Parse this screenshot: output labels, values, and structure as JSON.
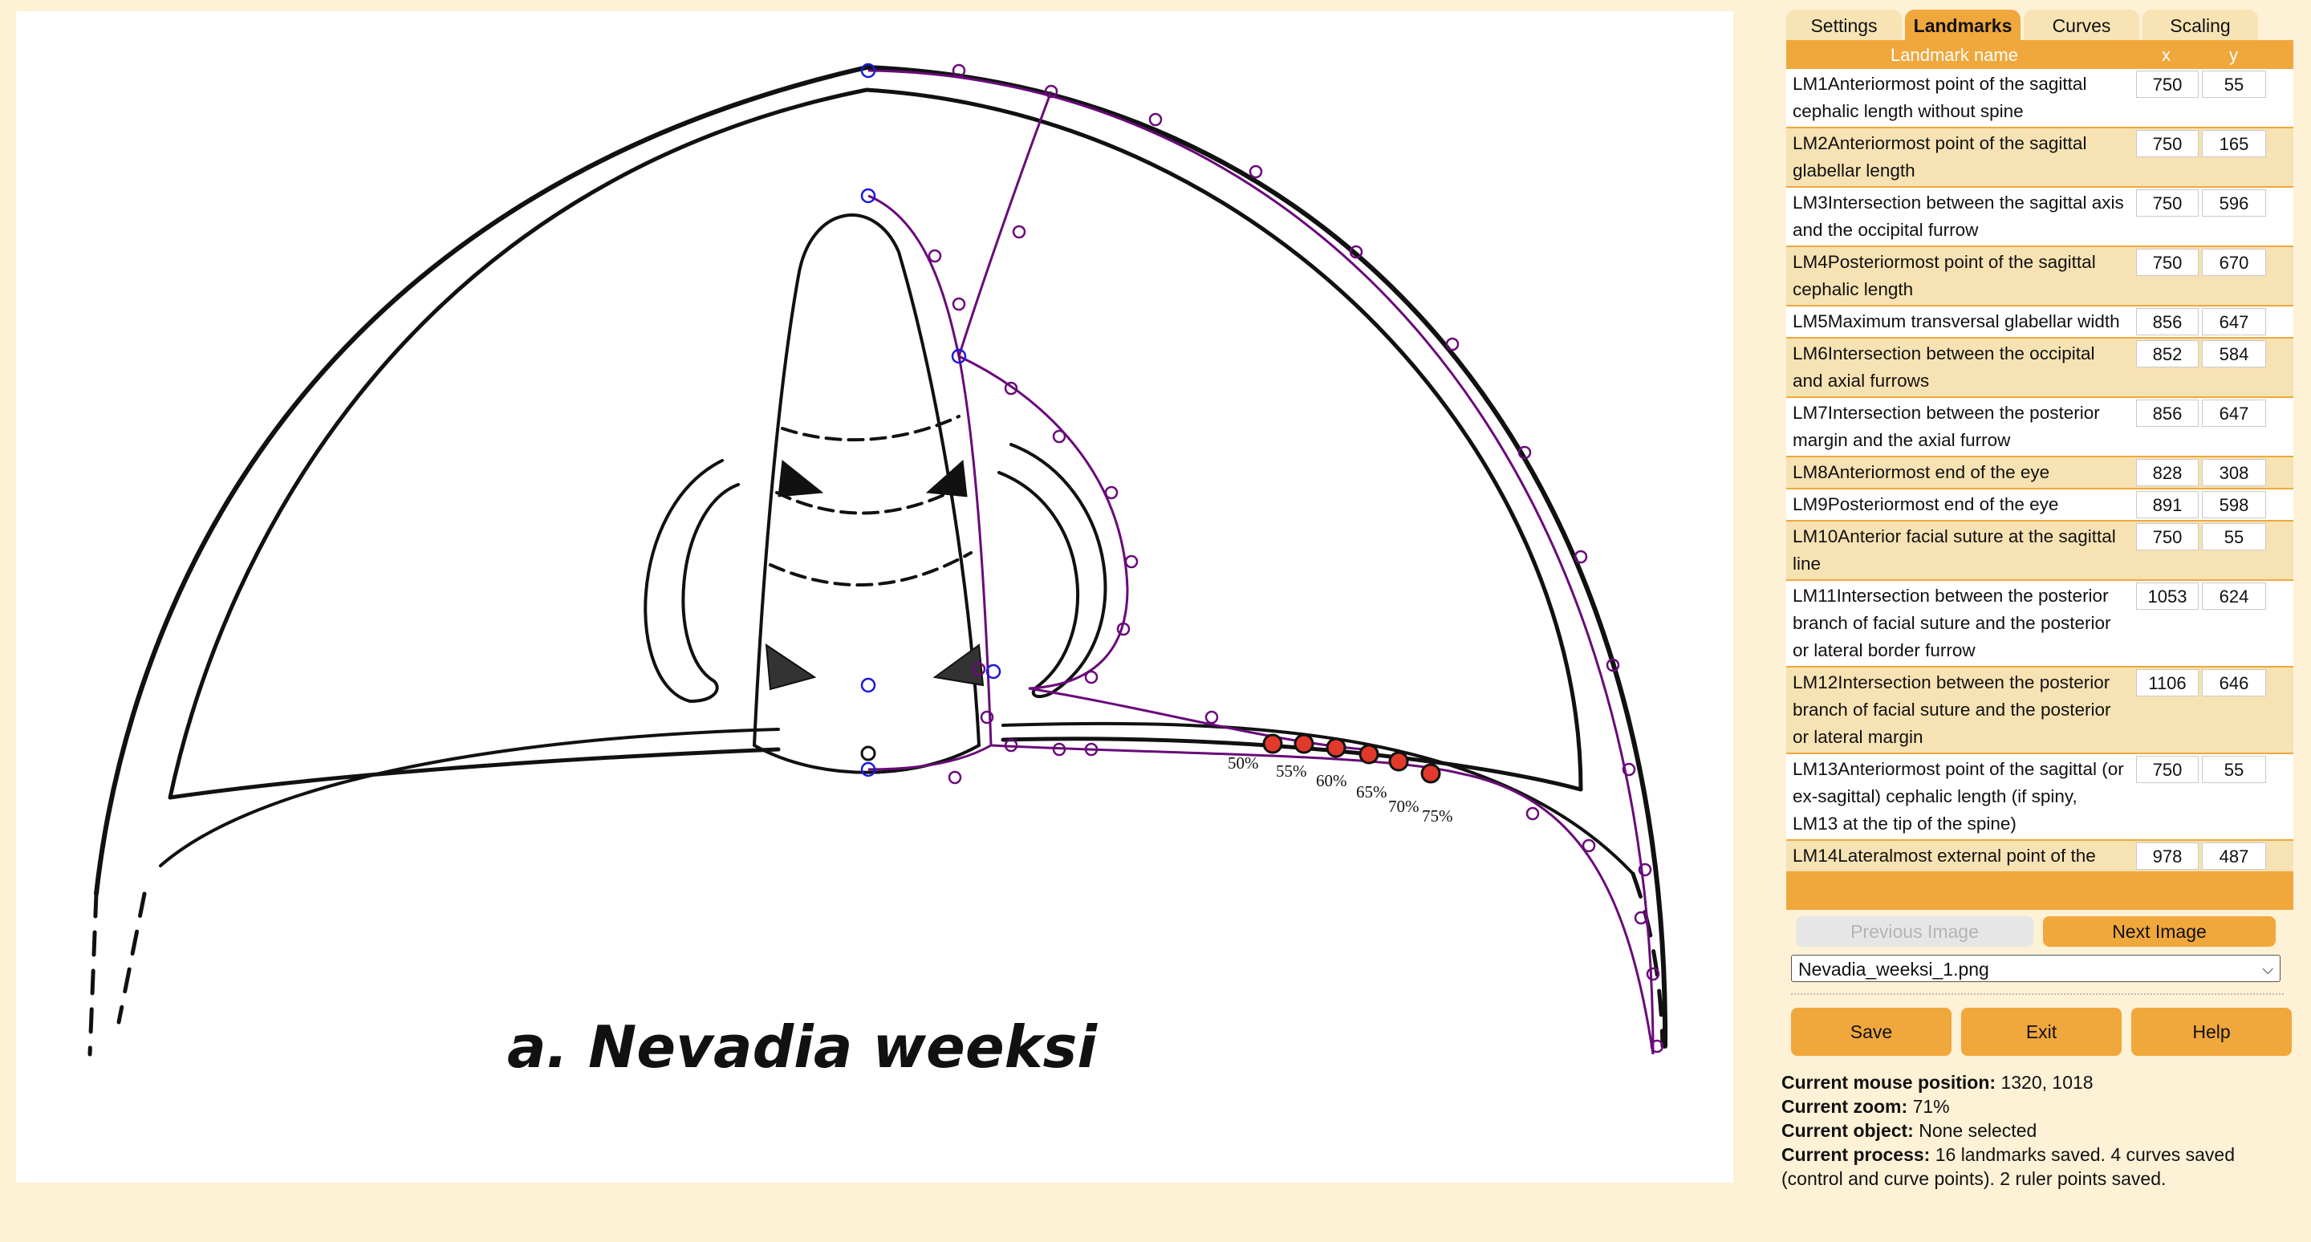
{
  "tabs": [
    {
      "label": "Settings",
      "active": false
    },
    {
      "label": "Landmarks",
      "active": true
    },
    {
      "label": "Curves",
      "active": false
    },
    {
      "label": "Scaling",
      "active": false
    }
  ],
  "table": {
    "headers": {
      "name": "Landmark name",
      "x": "x",
      "y": "y"
    },
    "rows": [
      {
        "name": "LM1Anteriormost point of the sagittal cephalic length without spine",
        "x": "750",
        "y": "55"
      },
      {
        "name": "LM2Anteriormost point of the sagittal glabellar length",
        "x": "750",
        "y": "165"
      },
      {
        "name": "LM3Intersection between the sagittal axis and the occipital furrow",
        "x": "750",
        "y": "596"
      },
      {
        "name": "LM4Posteriormost point of the sagittal cephalic length",
        "x": "750",
        "y": "670"
      },
      {
        "name": "LM5Maximum transversal glabellar width",
        "x": "856",
        "y": "647"
      },
      {
        "name": "LM6Intersection between the occipital and axial furrows",
        "x": "852",
        "y": "584"
      },
      {
        "name": "LM7Intersection between the posterior margin and the axial furrow",
        "x": "856",
        "y": "647"
      },
      {
        "name": "LM8Anteriormost end of the eye",
        "x": "828",
        "y": "308"
      },
      {
        "name": "LM9Posteriormost end of the eye",
        "x": "891",
        "y": "598"
      },
      {
        "name": "LM10Anterior facial suture at the sagittal line",
        "x": "750",
        "y": "55"
      },
      {
        "name": "LM11Intersection between the posterior branch of facial suture and the posterior or lateral border furrow",
        "x": "1053",
        "y": "624"
      },
      {
        "name": "LM12Intersection between the posterior branch of facial suture and the posterior or lateral margin",
        "x": "1106",
        "y": "646"
      },
      {
        "name": "LM13Anteriormost point of the sagittal (or ex-sagittal) cephalic length (if spiny, LM13 at the tip of the spine)",
        "x": "750",
        "y": "55"
      },
      {
        "name": "LM14Lateralmost external point of the",
        "x": "978",
        "y": "487"
      }
    ]
  },
  "nav": {
    "previous": "Previous Image",
    "next": "Next Image",
    "previous_enabled": false
  },
  "file_select": {
    "value": "Nevadia_weeksi_1.png"
  },
  "actions": {
    "save": "Save",
    "exit": "Exit",
    "help": "Help"
  },
  "status": {
    "mouse_label": "Current mouse position:",
    "mouse_value": "1320, 1018",
    "zoom_label": "Current zoom:",
    "zoom_value": "71%",
    "object_label": "Current object:",
    "object_value": "None selected",
    "process_label": "Current process:",
    "process_value": "16 landmarks saved. 4 curves saved (control and curve points). 2 ruler points saved."
  },
  "image": {
    "caption": "a. Nevadia weeksi",
    "percent_labels": [
      "50%",
      "55%",
      "60%",
      "65%",
      "70%",
      "75%"
    ]
  },
  "colors": {
    "accent": "#f0a73c",
    "curve": "#6a0a7a",
    "landmark": "#1a1adc",
    "marker": "#e23a2a"
  }
}
